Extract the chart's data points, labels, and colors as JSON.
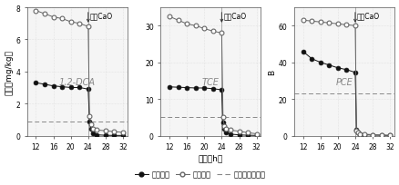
{
  "panel1": {
    "title": "1,2-DCA",
    "ylabel": "浓度（mg/kg）",
    "ylim": [
      0,
      8
    ],
    "yticks": [
      0,
      2,
      4,
      6,
      8
    ],
    "dashed_y": 0.9,
    "black_x": [
      12,
      14,
      16,
      18,
      20,
      22,
      24,
      24.3,
      24.6,
      25,
      26,
      28,
      30,
      32
    ],
    "black_y": [
      3.3,
      3.2,
      3.1,
      3.05,
      3.0,
      3.0,
      2.9,
      0.9,
      0.4,
      0.15,
      0.05,
      0.02,
      0.01,
      0.01
    ],
    "open_x": [
      12,
      14,
      16,
      18,
      20,
      22,
      24,
      24.3,
      24.6,
      25,
      26,
      28,
      30,
      32
    ],
    "open_y": [
      7.8,
      7.6,
      7.4,
      7.3,
      7.1,
      7.0,
      6.8,
      1.2,
      0.7,
      0.45,
      0.35,
      0.3,
      0.25,
      0.2
    ],
    "cao_x": 24.0,
    "cao_label": "添加CaO"
  },
  "panel2": {
    "title": "TCE",
    "ylabel": "",
    "ylim": [
      0,
      35
    ],
    "yticks": [
      0,
      10,
      20,
      30
    ],
    "dashed_y": 5,
    "black_x": [
      12,
      14,
      16,
      18,
      20,
      22,
      24,
      24.3,
      24.6,
      25,
      26,
      28,
      30,
      32
    ],
    "black_y": [
      13.3,
      13.2,
      13.1,
      13.0,
      13.0,
      12.8,
      12.5,
      3.5,
      1.8,
      0.8,
      0.4,
      0.2,
      0.1,
      0.05
    ],
    "open_x": [
      12,
      14,
      16,
      18,
      20,
      22,
      24,
      24.3,
      24.6,
      25,
      26,
      28,
      30,
      32
    ],
    "open_y": [
      32.5,
      31.5,
      30.5,
      30.0,
      29.2,
      28.5,
      28.0,
      5.0,
      2.5,
      1.8,
      1.5,
      1.2,
      0.8,
      0.5
    ],
    "cao_x": 24.0,
    "cao_label": "添加CaO"
  },
  "panel3": {
    "title": "PCE",
    "ylabel": "B",
    "ylim": [
      0,
      70
    ],
    "yticks": [
      0,
      20,
      40,
      60
    ],
    "dashed_y": 23,
    "black_x": [
      12,
      14,
      16,
      18,
      20,
      22,
      24,
      24.3,
      24.6,
      25,
      26,
      28,
      30,
      32
    ],
    "black_y": [
      46.0,
      42.0,
      40.0,
      38.5,
      37.0,
      36.0,
      34.5,
      3.0,
      1.5,
      0.8,
      0.5,
      0.3,
      0.2,
      0.1
    ],
    "open_x": [
      12,
      14,
      16,
      18,
      20,
      22,
      24,
      24.3,
      24.6,
      25,
      26,
      28,
      30,
      32
    ],
    "open_y": [
      63.0,
      62.5,
      62.0,
      61.5,
      61.0,
      60.5,
      60.0,
      2.5,
      1.5,
      1.0,
      0.8,
      0.5,
      0.3,
      0.1
    ],
    "cao_x": 24.0,
    "cao_label": "添加CaO"
  },
  "xlabel": "时间（h）",
  "xticks": [
    12,
    16,
    20,
    24,
    28,
    32
  ],
  "xlim": [
    10,
    33
  ],
  "legend_labels": [
    "粘质粉土",
    "粉质粘土",
    "土壤修复目标值"
  ],
  "black_color": "#111111",
  "open_color": "#666666",
  "dashed_color": "#888888",
  "vline_color": "#aaaaaa",
  "arrow_color": "#333333",
  "markersize": 3.5,
  "linewidth": 0.7,
  "fontsize_label": 6.5,
  "fontsize_title": 6.5,
  "fontsize_tick": 5.5,
  "fontsize_legend": 6,
  "fontsize_cao": 5.5,
  "fontsize_panel_label": 7
}
